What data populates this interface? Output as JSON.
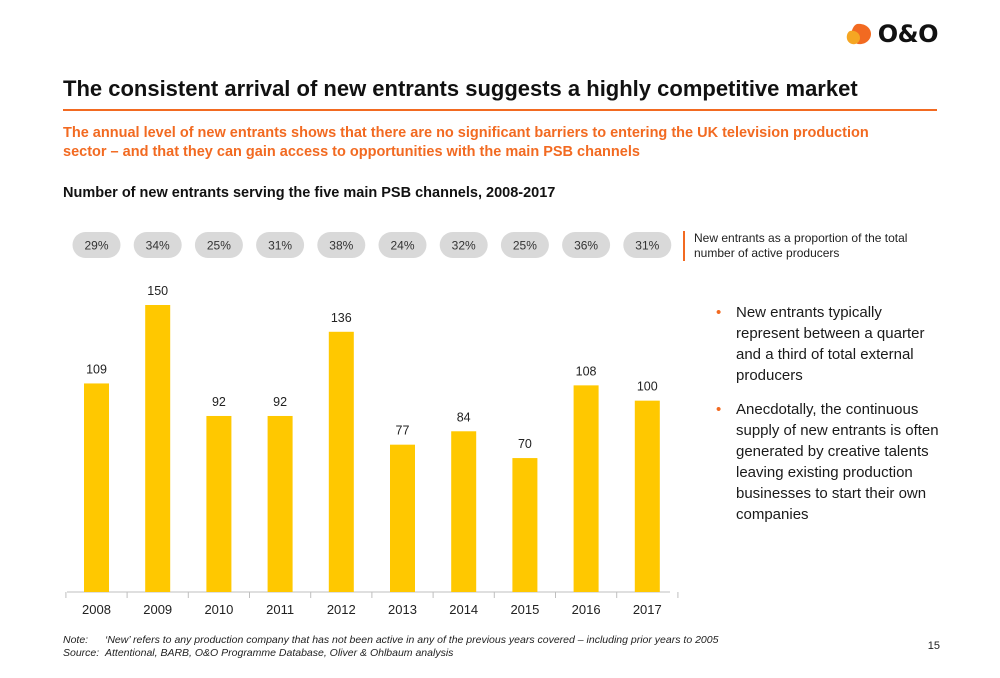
{
  "logo": {
    "text": "O&O",
    "colors": {
      "orange": "#f26a21",
      "amber": "#f5a623"
    }
  },
  "title": "The consistent arrival of new entrants suggests a highly competitive market",
  "subtitle": "The annual level of new entrants shows that there are no significant barriers to entering the UK television production sector – and that they can gain access to opportunities with the main PSB channels",
  "chart_title": "Number of new entrants serving the five main PSB channels, 2008-2017",
  "percent_legend": "New entrants as a proportion of the total number of active producers",
  "chart_data": {
    "type": "bar",
    "title": "Number of new entrants serving the five main PSB channels, 2008-2017",
    "categories": [
      "2008",
      "2009",
      "2010",
      "2011",
      "2012",
      "2013",
      "2014",
      "2015",
      "2016",
      "2017"
    ],
    "values": [
      109,
      150,
      92,
      92,
      136,
      77,
      84,
      70,
      108,
      100
    ],
    "proportions": [
      "29%",
      "34%",
      "25%",
      "31%",
      "38%",
      "24%",
      "32%",
      "25%",
      "36%",
      "31%"
    ],
    "xlabel": "",
    "ylabel": "",
    "ylim": [
      0,
      150
    ],
    "grid": false,
    "bar_color": "#ffc800",
    "pill_color": "#d9d9d9"
  },
  "bullets": [
    "New entrants typically represent between a quarter and a third of total external producers",
    "Anecdotally, the continuous supply of new entrants is often generated by creative talents leaving existing production businesses to start their own companies"
  ],
  "footnote": {
    "note_label": "Note:",
    "note_text": "‘New’ refers to any production company that has not been active in any of the previous years covered – including prior years to 2005",
    "source_label": "Source:",
    "source_text": "Attentional, BARB, O&O Programme Database, Oliver & Ohlbaum analysis"
  },
  "page_number": "15"
}
